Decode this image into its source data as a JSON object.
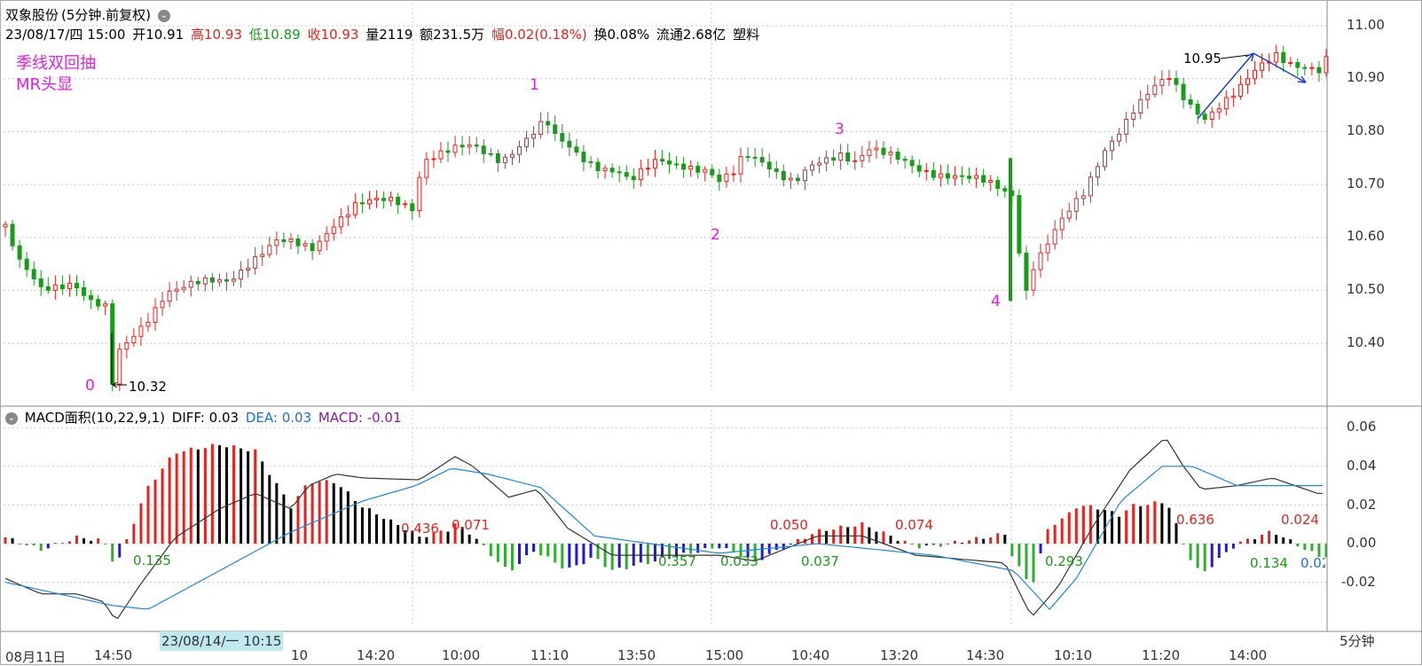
{
  "header": {
    "stock_name": "双象股份",
    "period_label": "(5分钟.前复权)",
    "date": "23/08/17/四 15:00",
    "open_label": "开",
    "open_value": "10.91",
    "high_label": "高",
    "high_value": "10.93",
    "low_label": "低",
    "low_value": "10.89",
    "close_label": "收",
    "close_value": "10.93",
    "volume_text": "量2119",
    "amount_text": "额231.5万",
    "change_label": "幅",
    "change_value": "0.02(0.18%)",
    "turnover_text": "换0.08%",
    "float_text": "流通2.68亿",
    "industry": "塑料"
  },
  "annotations": {
    "line1": "季线双回抽",
    "line2": "MR头显",
    "high_marker": "10.95",
    "low_marker": "10.32",
    "points": [
      "0",
      "1",
      "2",
      "3",
      "4"
    ]
  },
  "macd": {
    "title": "MACD面积(10,22,9,1)",
    "diff_label": "DIFF: 0.03",
    "dea_label": "DEA: 0.03",
    "macd_label": "MACD: -0.01",
    "area_labels": [
      {
        "text": "0.135",
        "color": "green"
      },
      {
        "text": "0.436",
        "color": "red"
      },
      {
        "text": "0.071",
        "color": "red"
      },
      {
        "text": "0.357",
        "color": "green"
      },
      {
        "text": "0.033",
        "color": "green"
      },
      {
        "text": "0.050",
        "color": "red"
      },
      {
        "text": "0.037",
        "color": "green"
      },
      {
        "text": "0.074",
        "color": "red"
      },
      {
        "text": "0.293",
        "color": "green"
      },
      {
        "text": "0.636",
        "color": "red"
      },
      {
        "text": "0.024",
        "color": "red"
      },
      {
        "text": "0.134",
        "color": "green"
      },
      {
        "text": "0.02",
        "color": "blue"
      }
    ],
    "yticks": [
      "0.06",
      "0.04",
      "0.02",
      "0.00",
      "-0.02"
    ]
  },
  "price_axis": {
    "ticks": [
      "11.00",
      "10.90",
      "10.80",
      "10.70",
      "10.60",
      "10.50",
      "10.40"
    ]
  },
  "time_axis": {
    "labels": [
      "08月11日",
      "14:50",
      "10",
      "14:20",
      "10:00",
      "11:10",
      "13:50",
      "15:00",
      "10:40",
      "13:20",
      "14:30",
      "10:10",
      "11:20",
      "14:00"
    ],
    "cursor_label": "23/08/14/一 10:15",
    "period_button": "5分钟"
  },
  "chart_data": {
    "type": "candlestick",
    "title": "双象股份(5分钟.前复权)",
    "ylim": [
      10.3,
      11.02
    ],
    "macd_ylim": [
      -0.032,
      0.065
    ],
    "price_path": [
      [
        0,
        10.62
      ],
      [
        8,
        10.55
      ],
      [
        20,
        10.5
      ],
      [
        38,
        10.52
      ],
      [
        48,
        10.48
      ],
      [
        58,
        10.46
      ],
      [
        60,
        10.32
      ],
      [
        64,
        10.38
      ],
      [
        78,
        10.44
      ],
      [
        90,
        10.5
      ],
      [
        108,
        10.51
      ],
      [
        125,
        10.52
      ],
      [
        138,
        10.56
      ],
      [
        152,
        10.59
      ],
      [
        172,
        10.58
      ],
      [
        184,
        10.63
      ],
      [
        196,
        10.66
      ],
      [
        218,
        10.67
      ],
      [
        228,
        10.66
      ],
      [
        234,
        10.75
      ],
      [
        246,
        10.76
      ],
      [
        262,
        10.77
      ],
      [
        278,
        10.75
      ],
      [
        290,
        10.78
      ],
      [
        298,
        10.8
      ],
      [
        303,
        10.82
      ],
      [
        306,
        10.79
      ],
      [
        312,
        10.78
      ],
      [
        330,
        10.74
      ],
      [
        344,
        10.72
      ],
      [
        350,
        10.7
      ],
      [
        366,
        10.75
      ],
      [
        380,
        10.74
      ],
      [
        394,
        10.72
      ],
      [
        400,
        10.7
      ],
      [
        408,
        10.72
      ],
      [
        414,
        10.76
      ],
      [
        424,
        10.75
      ],
      [
        434,
        10.72
      ],
      [
        442,
        10.7
      ],
      [
        452,
        10.73
      ],
      [
        468,
        10.76
      ],
      [
        476,
        10.75
      ],
      [
        484,
        10.77
      ],
      [
        496,
        10.75
      ],
      [
        510,
        10.73
      ],
      [
        530,
        10.72
      ],
      [
        550,
        10.7
      ],
      [
        566,
        10.68
      ],
      [
        570,
        10.48
      ],
      [
        576,
        10.55
      ],
      [
        590,
        10.62
      ],
      [
        604,
        10.68
      ],
      [
        616,
        10.77
      ],
      [
        632,
        10.84
      ],
      [
        644,
        10.88
      ],
      [
        652,
        10.9
      ],
      [
        662,
        10.86
      ],
      [
        672,
        10.83
      ],
      [
        690,
        10.87
      ],
      [
        702,
        10.92
      ],
      [
        712,
        10.95
      ],
      [
        722,
        10.93
      ],
      [
        736,
        10.91
      ],
      [
        740,
        10.93
      ]
    ],
    "diff_path": [
      [
        0,
        -0.018
      ],
      [
        20,
        -0.026
      ],
      [
        40,
        -0.026
      ],
      [
        55,
        -0.03
      ],
      [
        62,
        -0.04
      ],
      [
        75,
        -0.022
      ],
      [
        95,
        0.003
      ],
      [
        120,
        0.018
      ],
      [
        140,
        0.026
      ],
      [
        160,
        0.018
      ],
      [
        170,
        0.03
      ],
      [
        185,
        0.036
      ],
      [
        200,
        0.034
      ],
      [
        232,
        0.033
      ],
      [
        252,
        0.045
      ],
      [
        262,
        0.04
      ],
      [
        282,
        0.024
      ],
      [
        298,
        0.028
      ],
      [
        315,
        0.008
      ],
      [
        340,
        -0.006
      ],
      [
        400,
        -0.006
      ],
      [
        420,
        -0.009
      ],
      [
        455,
        0.004
      ],
      [
        480,
        0.004
      ],
      [
        510,
        -0.006
      ],
      [
        560,
        -0.01
      ],
      [
        575,
        -0.038
      ],
      [
        590,
        -0.022
      ],
      [
        610,
        0.01
      ],
      [
        630,
        0.038
      ],
      [
        650,
        0.055
      ],
      [
        660,
        0.04
      ],
      [
        670,
        0.028
      ],
      [
        690,
        0.03
      ],
      [
        710,
        0.034
      ],
      [
        735,
        0.026
      ]
    ],
    "dea_path": [
      [
        0,
        -0.02
      ],
      [
        60,
        -0.032
      ],
      [
        80,
        -0.034
      ],
      [
        120,
        -0.014
      ],
      [
        160,
        0.006
      ],
      [
        200,
        0.022
      ],
      [
        230,
        0.03
      ],
      [
        250,
        0.039
      ],
      [
        270,
        0.036
      ],
      [
        300,
        0.029
      ],
      [
        330,
        0.004
      ],
      [
        400,
        -0.005
      ],
      [
        455,
        0.0
      ],
      [
        520,
        -0.006
      ],
      [
        565,
        -0.014
      ],
      [
        585,
        -0.034
      ],
      [
        600,
        -0.018
      ],
      [
        625,
        0.022
      ],
      [
        648,
        0.04
      ],
      [
        665,
        0.04
      ],
      [
        690,
        0.03
      ],
      [
        735,
        0.03
      ]
    ]
  }
}
